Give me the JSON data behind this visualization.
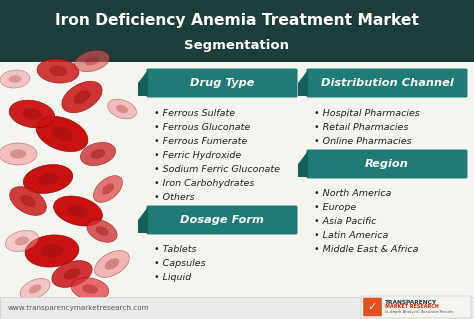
{
  "title": "Iron Deficiency Anemia Treatment Market",
  "subtitle": "Segmentation",
  "header_bg": "#1c3d3a",
  "box_color": "#1e7b75",
  "body_bg": "#f5f5f0",
  "body_text_color": "#222222",
  "sections": [
    {
      "header": "Drug Type",
      "items": [
        "Ferrous Sulfate",
        "Ferrous Gluconate",
        "Ferrous Fumerate",
        "Ferric Hydroxide",
        "Sodium Ferric Gluconate",
        "Iron Carbohydrates",
        "Others"
      ]
    },
    {
      "header": "Dosage Form",
      "items": [
        "Tablets",
        "Capsules",
        "Liquid"
      ]
    },
    {
      "header": "Distribution Channel",
      "items": [
        "Hospital Pharmacies",
        "Retail Pharmacies",
        "Online Pharmacies"
      ]
    },
    {
      "header": "Region",
      "items": [
        "North America",
        "Europe",
        "Asia Pacific",
        "Latin America",
        "Middle East & Africa"
      ]
    }
  ],
  "footer_text": "www.transparencymarketresearch.com",
  "cells": [
    [
      62,
      185,
      54,
      32,
      -20,
      "#cc1111",
      1.0
    ],
    [
      48,
      140,
      50,
      28,
      10,
      "#cc1111",
      1.0
    ],
    [
      78,
      108,
      50,
      28,
      -15,
      "#cc1111",
      1.0
    ],
    [
      52,
      68,
      54,
      32,
      5,
      "#cc1111",
      1.0
    ],
    [
      82,
      222,
      44,
      26,
      30,
      "#cc2222",
      0.92
    ],
    [
      28,
      118,
      40,
      24,
      -30,
      "#cc2222",
      0.88
    ],
    [
      98,
      165,
      36,
      22,
      15,
      "#cc3333",
      0.82
    ],
    [
      32,
      205,
      46,
      27,
      -10,
      "#cc1111",
      0.95
    ],
    [
      108,
      130,
      34,
      20,
      40,
      "#dd4444",
      0.72
    ],
    [
      72,
      45,
      42,
      24,
      20,
      "#cc2222",
      0.92
    ],
    [
      102,
      88,
      32,
      20,
      -25,
      "#cc3333",
      0.78
    ],
    [
      18,
      165,
      38,
      22,
      0,
      "#ee8888",
      0.5
    ],
    [
      58,
      248,
      42,
      24,
      -5,
      "#cc2222",
      0.88
    ],
    [
      92,
      258,
      36,
      20,
      15,
      "#dd5555",
      0.62
    ],
    [
      122,
      210,
      30,
      18,
      -20,
      "#ee8888",
      0.52
    ],
    [
      112,
      55,
      38,
      22,
      30,
      "#ee8888",
      0.58
    ],
    [
      22,
      78,
      34,
      20,
      15,
      "#ee9999",
      0.48
    ],
    [
      15,
      240,
      30,
      18,
      5,
      "#ee8888",
      0.45
    ],
    [
      90,
      30,
      38,
      22,
      -10,
      "#dd3333",
      0.7
    ],
    [
      35,
      30,
      32,
      18,
      25,
      "#ee9999",
      0.5
    ]
  ]
}
